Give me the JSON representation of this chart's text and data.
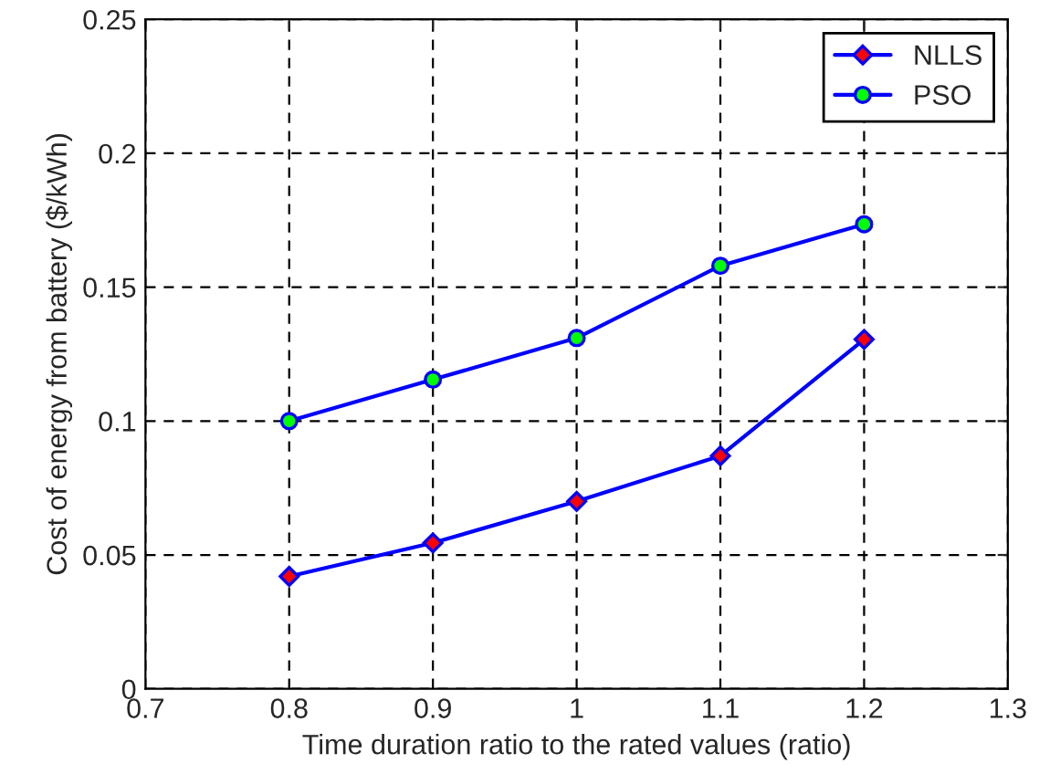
{
  "chart_data": {
    "type": "line",
    "xlabel": "Time duration ratio to the rated values (ratio)",
    "ylabel": "Cost of energy from battery ($/kWh)",
    "x": [
      0.8,
      0.9,
      1,
      1.1,
      1.2
    ],
    "series": [
      {
        "name": "NLLS",
        "color": "#0000ff",
        "marker": "diamond",
        "values": [
          0.042,
          0.0545,
          0.07,
          0.087,
          0.1305
        ]
      },
      {
        "name": "PSO",
        "color": "#0000ff",
        "marker": "circle",
        "values": [
          0.1,
          0.1155,
          0.131,
          0.158,
          0.1735
        ]
      }
    ],
    "xlim": [
      0.7,
      1.3
    ],
    "xticks": [
      0.7,
      0.8,
      0.9,
      1,
      1.1,
      1.2,
      1.3
    ],
    "ylim": [
      0,
      0.25
    ],
    "yticks": [
      0,
      0.05,
      0.1,
      0.15,
      0.2,
      0.25
    ],
    "grid": true,
    "legend": "top right",
    "line_style": "solid"
  }
}
